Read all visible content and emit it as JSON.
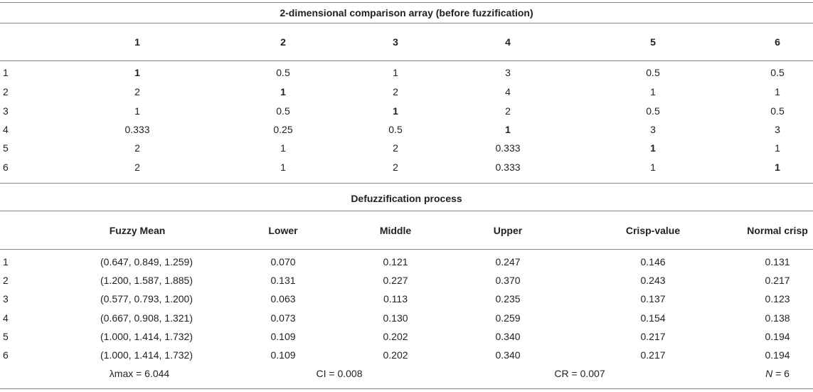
{
  "section1": {
    "title": "2-dimensional comparison array (before fuzzification)",
    "headers": [
      "1",
      "2",
      "3",
      "4",
      "5",
      "6"
    ],
    "rows": [
      {
        "label": "1",
        "cells": [
          "1",
          "0.5",
          "1",
          "3",
          "0.5",
          "0.5"
        ]
      },
      {
        "label": "2",
        "cells": [
          "2",
          "1",
          "2",
          "4",
          "1",
          "1"
        ]
      },
      {
        "label": "3",
        "cells": [
          "1",
          "0.5",
          "1",
          "2",
          "0.5",
          "0.5"
        ]
      },
      {
        "label": "4",
        "cells": [
          "0.333",
          "0.25",
          "0.5",
          "1",
          "3",
          "3"
        ]
      },
      {
        "label": "5",
        "cells": [
          "2",
          "1",
          "2",
          "0.333",
          "1",
          "1"
        ]
      },
      {
        "label": "6",
        "cells": [
          "2",
          "1",
          "2",
          "0.333",
          "1",
          "1"
        ]
      }
    ]
  },
  "section2": {
    "title": "Defuzzification process",
    "headers": [
      "Fuzzy Mean",
      "Lower",
      "Middle",
      "Upper",
      "Crisp-value",
      "Normal crisp"
    ],
    "rows": [
      {
        "label": "1",
        "cells": [
          "(0.647, 0.849, 1.259)",
          "0.070",
          "0.121",
          "0.247",
          "0.146",
          "0.131"
        ]
      },
      {
        "label": "2",
        "cells": [
          "(1.200, 1.587, 1.885)",
          "0.131",
          "0.227",
          "0.370",
          "0.243",
          "0.217"
        ]
      },
      {
        "label": "3",
        "cells": [
          "(0.577, 0.793, 1.200)",
          "0.063",
          "0.113",
          "0.235",
          "0.137",
          "0.123"
        ]
      },
      {
        "label": "4",
        "cells": [
          "(0.667, 0.908, 1.321)",
          "0.073",
          "0.130",
          "0.259",
          "0.154",
          "0.138"
        ]
      },
      {
        "label": "5",
        "cells": [
          "(1.000, 1.414, 1.732)",
          "0.109",
          "0.202",
          "0.340",
          "0.217",
          "0.194"
        ]
      },
      {
        "label": "6",
        "cells": [
          "(1.000, 1.414, 1.732)",
          "0.109",
          "0.202",
          "0.340",
          "0.217",
          "0.194"
        ]
      }
    ]
  },
  "summary": {
    "lambda_max": "λmax = 6.044",
    "ci": "CI = 0.008",
    "cr": "CR = 0.007",
    "n_label": "N",
    "n_value": " = 6"
  }
}
